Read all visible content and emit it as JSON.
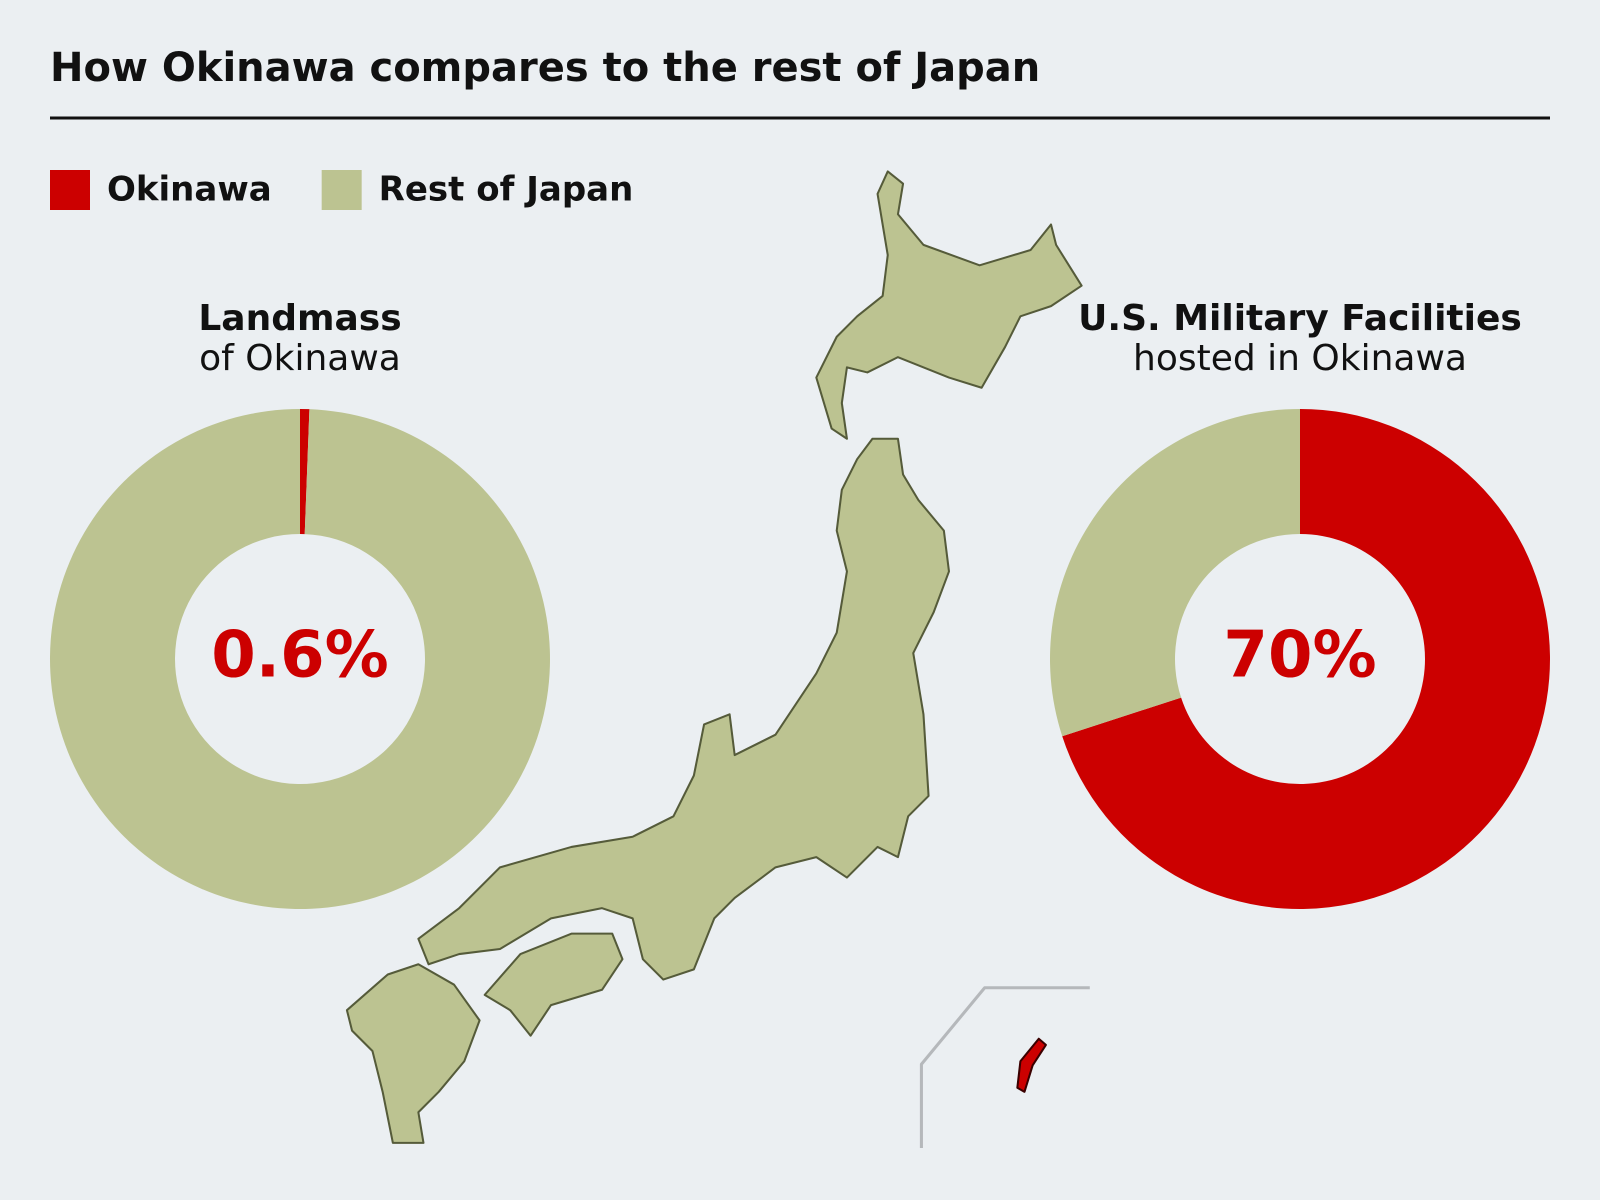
{
  "title": "How Okinawa compares to the rest of Japan",
  "legend": [
    {
      "name": "Okinawa",
      "color": "#cc0000"
    },
    {
      "name": "Rest of Japan",
      "color": "#bcc391"
    }
  ],
  "chart_data": [
    {
      "type": "donut",
      "title": "Landmass",
      "subtitle": "of Okinawa",
      "values": [
        0.6,
        99.4
      ],
      "value_labels": [
        "0.6%",
        null
      ]
    },
    {
      "type": "donut",
      "title": "U.S. Military Facilities",
      "subtitle": "hosted in Okinawa",
      "values": [
        70,
        30
      ],
      "value_labels": [
        "70%",
        null
      ]
    }
  ]
}
